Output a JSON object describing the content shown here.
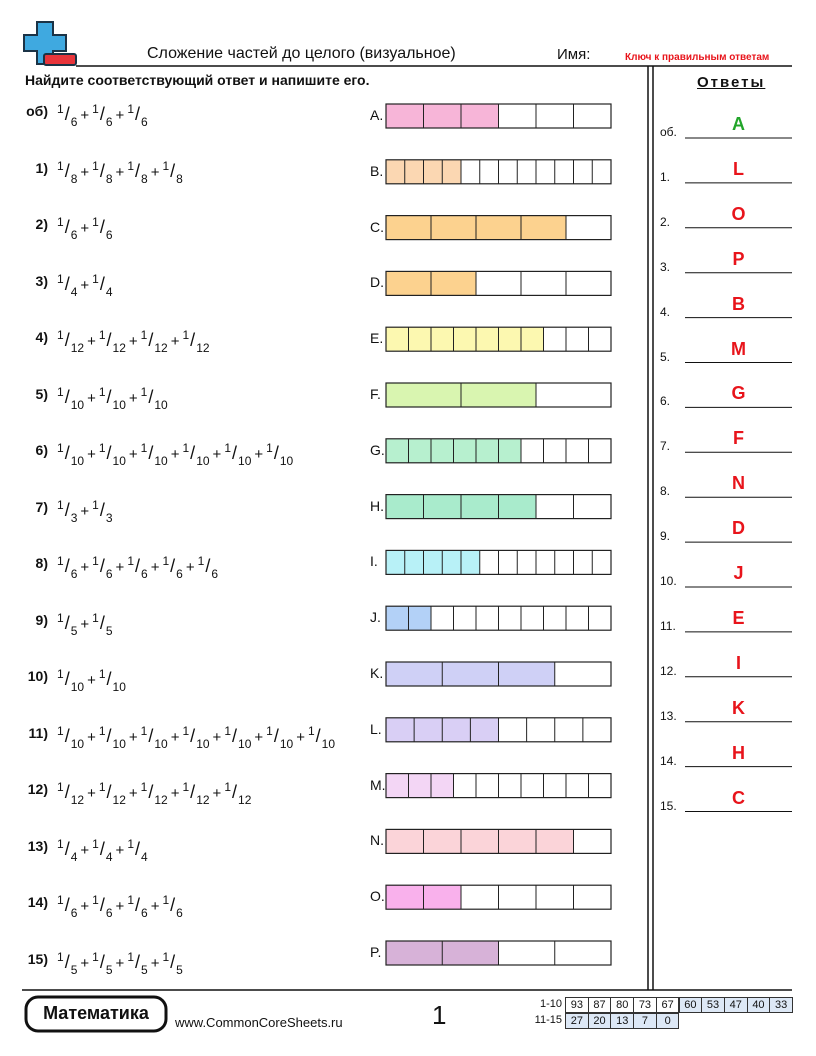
{
  "header": {
    "title": "Сложение частей до целого (визуальное)",
    "name_label": "Имя:",
    "answer_key": "Ключ к правильным ответам",
    "instructions": "Найдите соответствующий ответ и напишите его.",
    "answers_title": "Ответы"
  },
  "symbols": {
    "plus": "+",
    "slash": "/"
  },
  "problems": [
    {
      "label": "об)",
      "terms": [
        [
          1,
          6
        ],
        [
          1,
          6
        ],
        [
          1,
          6
        ]
      ]
    },
    {
      "label": "1)",
      "terms": [
        [
          1,
          8
        ],
        [
          1,
          8
        ],
        [
          1,
          8
        ],
        [
          1,
          8
        ]
      ]
    },
    {
      "label": "2)",
      "terms": [
        [
          1,
          6
        ],
        [
          1,
          6
        ]
      ]
    },
    {
      "label": "3)",
      "terms": [
        [
          1,
          4
        ],
        [
          1,
          4
        ]
      ]
    },
    {
      "label": "4)",
      "terms": [
        [
          1,
          12
        ],
        [
          1,
          12
        ],
        [
          1,
          12
        ],
        [
          1,
          12
        ]
      ]
    },
    {
      "label": "5)",
      "terms": [
        [
          1,
          10
        ],
        [
          1,
          10
        ],
        [
          1,
          10
        ]
      ]
    },
    {
      "label": "6)",
      "terms": [
        [
          1,
          10
        ],
        [
          1,
          10
        ],
        [
          1,
          10
        ],
        [
          1,
          10
        ],
        [
          1,
          10
        ],
        [
          1,
          10
        ]
      ]
    },
    {
      "label": "7)",
      "terms": [
        [
          1,
          3
        ],
        [
          1,
          3
        ]
      ]
    },
    {
      "label": "8)",
      "terms": [
        [
          1,
          6
        ],
        [
          1,
          6
        ],
        [
          1,
          6
        ],
        [
          1,
          6
        ],
        [
          1,
          6
        ]
      ]
    },
    {
      "label": "9)",
      "terms": [
        [
          1,
          5
        ],
        [
          1,
          5
        ]
      ]
    },
    {
      "label": "10)",
      "terms": [
        [
          1,
          10
        ],
        [
          1,
          10
        ]
      ]
    },
    {
      "label": "11)",
      "terms": [
        [
          1,
          10
        ],
        [
          1,
          10
        ],
        [
          1,
          10
        ],
        [
          1,
          10
        ],
        [
          1,
          10
        ],
        [
          1,
          10
        ],
        [
          1,
          10
        ]
      ]
    },
    {
      "label": "12)",
      "terms": [
        [
          1,
          12
        ],
        [
          1,
          12
        ],
        [
          1,
          12
        ],
        [
          1,
          12
        ],
        [
          1,
          12
        ]
      ]
    },
    {
      "label": "13)",
      "terms": [
        [
          1,
          4
        ],
        [
          1,
          4
        ],
        [
          1,
          4
        ]
      ]
    },
    {
      "label": "14)",
      "terms": [
        [
          1,
          6
        ],
        [
          1,
          6
        ],
        [
          1,
          6
        ],
        [
          1,
          6
        ]
      ]
    },
    {
      "label": "15)",
      "terms": [
        [
          1,
          5
        ],
        [
          1,
          5
        ],
        [
          1,
          5
        ],
        [
          1,
          5
        ]
      ]
    }
  ],
  "choices": [
    {
      "letter": "A.",
      "cells": 6,
      "shaded": 3,
      "color": "#f7b5d8"
    },
    {
      "letter": "B.",
      "cells": 12,
      "shaded": 4,
      "color": "#fbd7b2"
    },
    {
      "letter": "C.",
      "cells": 5,
      "shaded": 4,
      "color": "#fcd28f"
    },
    {
      "letter": "D.",
      "cells": 5,
      "shaded": 2,
      "color": "#fcd28f"
    },
    {
      "letter": "E.",
      "cells": 10,
      "shaded": 7,
      "color": "#fcf8b0"
    },
    {
      "letter": "F.",
      "cells": 3,
      "shaded": 2,
      "color": "#d9f5b0"
    },
    {
      "letter": "G.",
      "cells": 10,
      "shaded": 6,
      "color": "#b7f0cf"
    },
    {
      "letter": "H.",
      "cells": 6,
      "shaded": 4,
      "color": "#a9ebcc"
    },
    {
      "letter": "I.",
      "cells": 12,
      "shaded": 5,
      "color": "#b8f1f7"
    },
    {
      "letter": "J.",
      "cells": 10,
      "shaded": 2,
      "color": "#b3d1f7"
    },
    {
      "letter": "K.",
      "cells": 4,
      "shaded": 3,
      "color": "#cfd0f6"
    },
    {
      "letter": "L.",
      "cells": 8,
      "shaded": 4,
      "color": "#d9cff5"
    },
    {
      "letter": "M.",
      "cells": 10,
      "shaded": 3,
      "color": "#f3d6f5"
    },
    {
      "letter": "N.",
      "cells": 6,
      "shaded": 5,
      "color": "#fbd4d9"
    },
    {
      "letter": "O.",
      "cells": 6,
      "shaded": 2,
      "color": "#f9b1ec"
    },
    {
      "letter": "P.",
      "cells": 4,
      "shaded": 2,
      "color": "#d7b2d8"
    }
  ],
  "answers": [
    {
      "label": "об.",
      "letter": "A",
      "color": "#22a52a"
    },
    {
      "label": "1.",
      "letter": "L",
      "color": "#e8141b"
    },
    {
      "label": "2.",
      "letter": "O",
      "color": "#e8141b"
    },
    {
      "label": "3.",
      "letter": "P",
      "color": "#e8141b"
    },
    {
      "label": "4.",
      "letter": "B",
      "color": "#e8141b"
    },
    {
      "label": "5.",
      "letter": "M",
      "color": "#e8141b"
    },
    {
      "label": "6.",
      "letter": "G",
      "color": "#e8141b"
    },
    {
      "label": "7.",
      "letter": "F",
      "color": "#e8141b"
    },
    {
      "label": "8.",
      "letter": "N",
      "color": "#e8141b"
    },
    {
      "label": "9.",
      "letter": "D",
      "color": "#e8141b"
    },
    {
      "label": "10.",
      "letter": "J",
      "color": "#e8141b"
    },
    {
      "label": "11.",
      "letter": "E",
      "color": "#e8141b"
    },
    {
      "label": "12.",
      "letter": "I",
      "color": "#e8141b"
    },
    {
      "label": "13.",
      "letter": "K",
      "color": "#e8141b"
    },
    {
      "label": "14.",
      "letter": "H",
      "color": "#e8141b"
    },
    {
      "label": "15.",
      "letter": "C",
      "color": "#e8141b"
    }
  ],
  "footer": {
    "brand": "Математика",
    "website": "www.CommonCoreSheets.ru",
    "page": 1,
    "scores": [
      {
        "label": "1-10",
        "values": [
          93,
          87,
          80,
          73,
          67,
          60,
          53,
          47,
          40,
          33
        ]
      },
      {
        "label": "11-15",
        "values": [
          27,
          20,
          13,
          7,
          0
        ]
      }
    ]
  }
}
